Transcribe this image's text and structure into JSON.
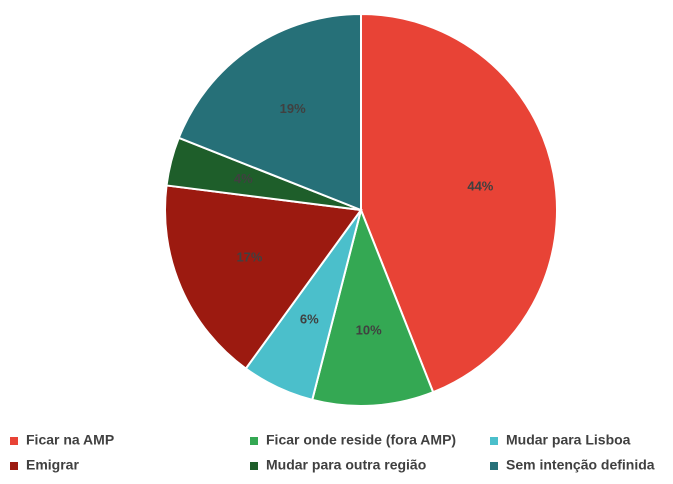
{
  "chart_data": {
    "type": "pie",
    "categories": [
      "Ficar na AMP",
      "Ficar onde reside (fora AMP)",
      "Mudar para Lisboa",
      "Emigrar",
      "Mudar para outra região",
      "Sem intenção definida"
    ],
    "values": [
      44,
      10,
      6,
      17,
      4,
      19
    ],
    "value_labels": [
      "44%",
      "10%",
      "6%",
      "17%",
      "4%",
      "19%"
    ],
    "colors": [
      "#e84336",
      "#34a853",
      "#4bbfcb",
      "#9c1a10",
      "#1e5e2a",
      "#267078"
    ],
    "legend": "bottom"
  }
}
